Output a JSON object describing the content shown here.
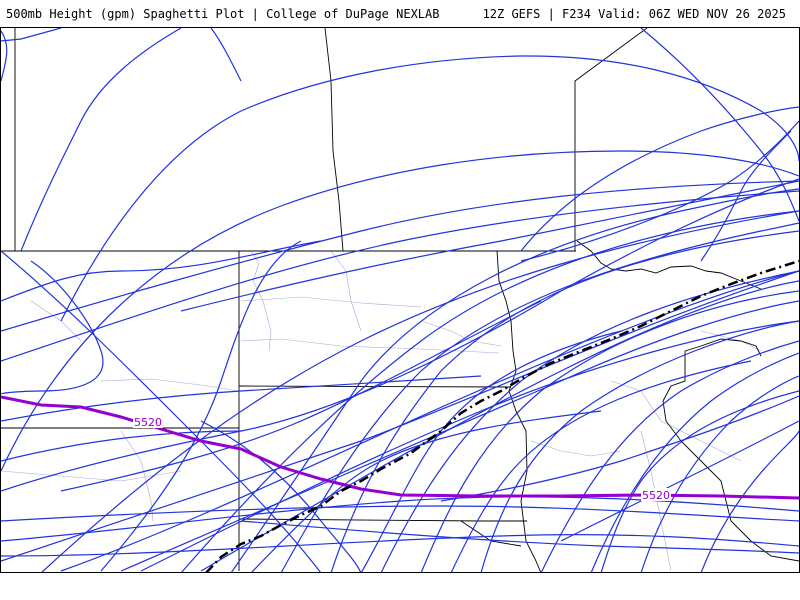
{
  "header": {
    "title": "500mb Height (gpm) Spaghetti Plot | College of DuPage NEXLAB",
    "run_info": "12Z GEFS | F234 Valid: 06Z WED NOV 26 2025"
  },
  "map": {
    "colors": {
      "member_line": "#2233dd",
      "reference_contour": "#9400d3",
      "mean_line": "#000000",
      "state_border": "#000000",
      "county_border": "#9999cc"
    },
    "contour_labels": [
      "5520",
      "5520"
    ]
  }
}
